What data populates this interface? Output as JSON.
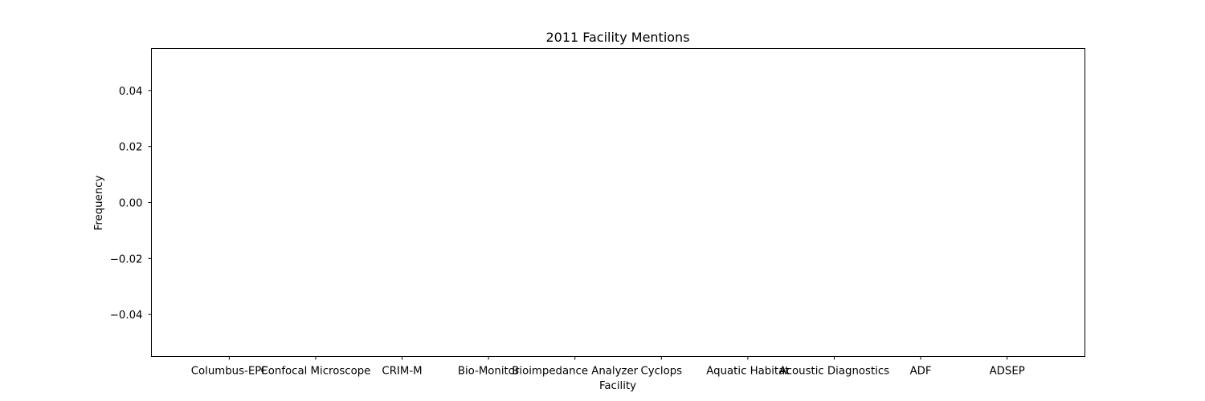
{
  "chart_data": {
    "type": "bar",
    "title": "2011 Facility Mentions",
    "xlabel": "Facility",
    "ylabel": "Frequency",
    "categories": [
      "Columbus-EPF",
      "Confocal Microscope",
      "CRIM-M",
      "Bio-Monitor",
      "Bioimpedance Analyzer",
      "Cyclops",
      "Aquatic Habitat",
      "Acoustic Diagnostics",
      "ADF",
      "ADSEP"
    ],
    "values": [
      0,
      0,
      0,
      0,
      0,
      0,
      0,
      0,
      0,
      0
    ],
    "ylim": [
      -0.055,
      0.055
    ],
    "yticks": [
      -0.04,
      -0.02,
      0.0,
      0.02,
      0.04
    ],
    "ytick_labels": [
      "−0.04",
      "−0.02",
      "0.00",
      "0.02",
      "0.04"
    ],
    "grid": false,
    "legend": "none"
  }
}
